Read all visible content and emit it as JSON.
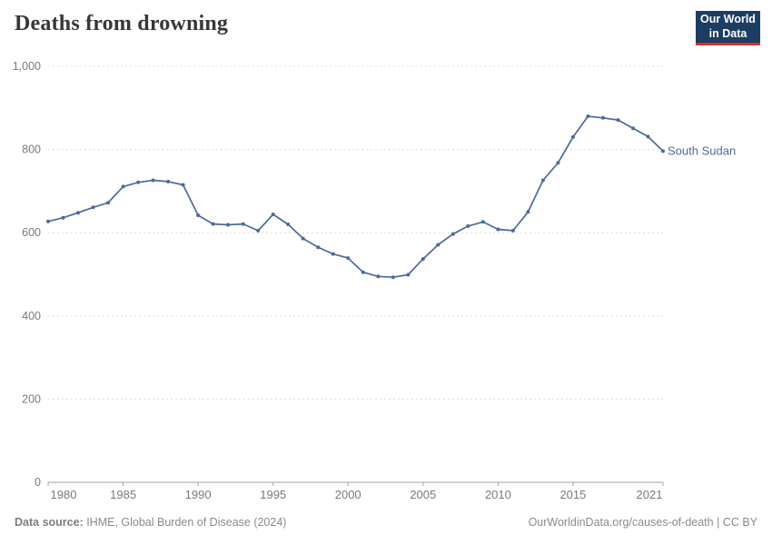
{
  "header": {
    "title": "Deaths from drowning",
    "logo": {
      "line1": "Our World",
      "line2": "in Data"
    }
  },
  "chart_data": {
    "type": "line",
    "title": "Deaths from drowning",
    "xlabel": "",
    "ylabel": "",
    "xlim": [
      1980,
      2021
    ],
    "ylim": [
      0,
      1000
    ],
    "grid": "horizontal-dashed",
    "legend_position": "end-of-line-label",
    "x_ticks": [
      1980,
      1985,
      1990,
      1995,
      2000,
      2005,
      2010,
      2015,
      2021
    ],
    "x_tick_labels": [
      "1980",
      "1985",
      "1990",
      "1995",
      "2000",
      "2005",
      "2010",
      "2015",
      "2021"
    ],
    "y_ticks": [
      0,
      200,
      400,
      600,
      800,
      1000
    ],
    "y_tick_labels": [
      "0",
      "200",
      "400",
      "600",
      "800",
      "1,000"
    ],
    "series": [
      {
        "name": "South Sudan",
        "color": "#4c6a9c",
        "x": [
          1980,
          1981,
          1982,
          1983,
          1984,
          1985,
          1986,
          1987,
          1988,
          1989,
          1990,
          1991,
          1992,
          1993,
          1994,
          1995,
          1996,
          1997,
          1998,
          1999,
          2000,
          2001,
          2002,
          2003,
          2004,
          2005,
          2006,
          2007,
          2008,
          2009,
          2010,
          2011,
          2012,
          2013,
          2014,
          2015,
          2016,
          2017,
          2018,
          2019,
          2020,
          2021
        ],
        "values": [
          627,
          636,
          648,
          661,
          672,
          711,
          721,
          726,
          723,
          715,
          642,
          621,
          619,
          621,
          605,
          644,
          620,
          586,
          565,
          549,
          539,
          505,
          495,
          493,
          499,
          537,
          571,
          597,
          616,
          626,
          608,
          605,
          650,
          726,
          768,
          830,
          880,
          876,
          871,
          851,
          831,
          796
        ]
      }
    ]
  },
  "footer": {
    "source_label": "Data source:",
    "source_text": " IHME, Global Burden of Disease (2024)",
    "link_text": "OurWorldinData.org/causes-of-death | CC BY"
  },
  "colors": {
    "line": "#4c6a9c",
    "logo_bg": "#1d3d63",
    "logo_red": "#d0342c",
    "grid": "#dcdcdc",
    "axis_text": "#7a7a7a",
    "title_text": "#373737"
  }
}
